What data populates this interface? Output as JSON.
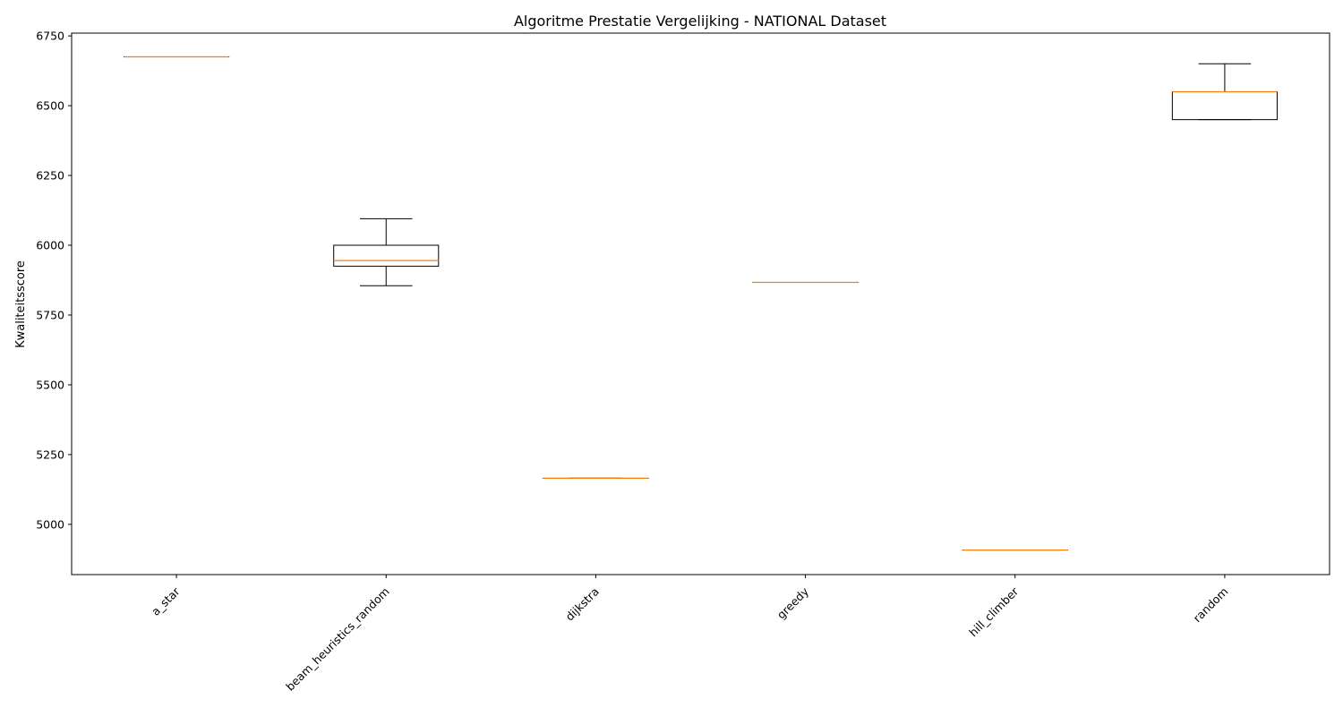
{
  "chart_data": {
    "type": "boxplot",
    "title": "Algoritme Prestatie Vergelijking - NATIONAL Dataset",
    "xlabel": "",
    "ylabel": "Kwaliteitsscore",
    "ylim": [
      4820,
      6760
    ],
    "yticks": [
      5000,
      5250,
      5500,
      5750,
      6000,
      6250,
      6500,
      6750
    ],
    "categories": [
      "a_star",
      "beam_heuristics_random",
      "dijkstra",
      "greedy",
      "hill_climber",
      "random"
    ],
    "boxes": [
      {
        "whisker_low": 6675,
        "q1": 6675,
        "median": 6675,
        "q3": 6675,
        "whisker_high": 6675
      },
      {
        "whisker_low": 5855,
        "q1": 5925,
        "median": 5945,
        "q3": 6000,
        "whisker_high": 6095
      },
      {
        "whisker_low": 5165,
        "q1": 5165,
        "median": 5165,
        "q3": 5165,
        "whisker_high": 5165
      },
      {
        "whisker_low": 5867,
        "q1": 5867,
        "median": 5867,
        "q3": 5867,
        "whisker_high": 5867
      },
      {
        "whisker_low": 4908,
        "q1": 4908,
        "median": 4908,
        "q3": 4908,
        "whisker_high": 4908
      },
      {
        "whisker_low": 6450,
        "q1": 6450,
        "median": 6550,
        "q3": 6550,
        "whisker_high": 6650
      }
    ],
    "grid": false,
    "colors": {
      "box": "#000000",
      "median": "#ff7f0e"
    }
  }
}
